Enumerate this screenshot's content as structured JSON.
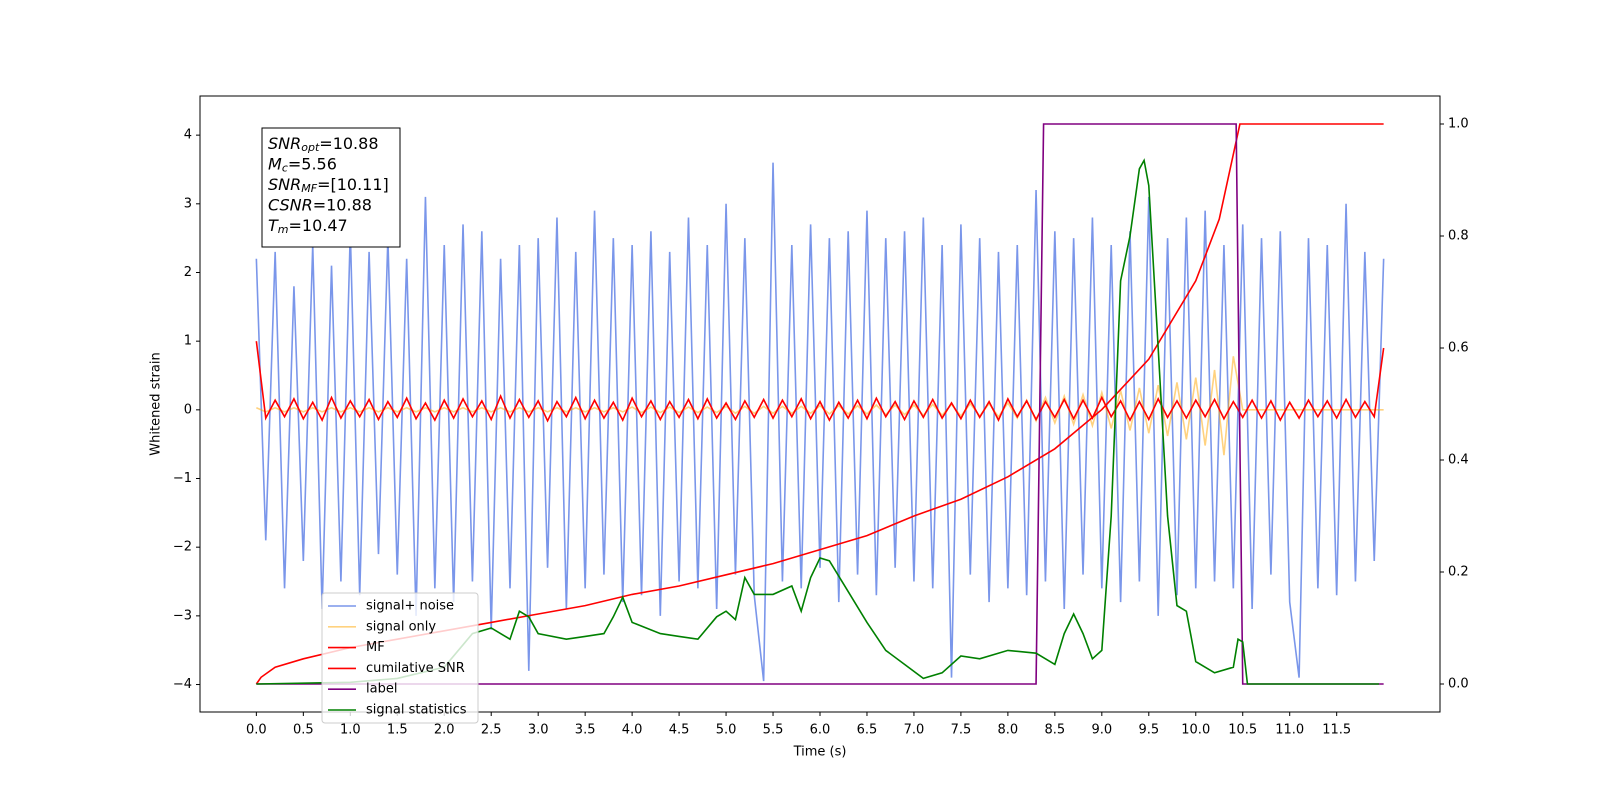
{
  "chart_data": {
    "type": "line",
    "x_label": "Time (s)",
    "y_label": "Whitened strain",
    "xlim": [
      -0.6,
      12.6
    ],
    "xticks": [
      {
        "value": 0,
        "label": "0.0"
      },
      0.5,
      {
        "value": 1,
        "label": "1.0"
      },
      1.5,
      {
        "value": 2,
        "label": "2.0"
      },
      2.5,
      {
        "value": 3,
        "label": "3.0"
      },
      3.5,
      {
        "value": 4,
        "label": "4.0"
      },
      4.5,
      {
        "value": 5,
        "label": "5.0"
      },
      5.5,
      {
        "value": 6,
        "label": "6.0"
      },
      6.5,
      {
        "value": 7,
        "label": "7.0"
      },
      7.5,
      {
        "value": 8,
        "label": "8.0"
      },
      8.5,
      {
        "value": 9,
        "label": "9.0"
      },
      9.5,
      {
        "value": 10,
        "label": "10.0"
      },
      10.5,
      {
        "value": 11,
        "label": "11.0"
      },
      11.5
    ],
    "ylim": [
      -4.4,
      4.57
    ],
    "yticks": [
      {
        "value": -4,
        "label": "−4"
      },
      {
        "value": -3,
        "label": "−3"
      },
      {
        "value": -2,
        "label": "−2"
      },
      {
        "value": -1,
        "label": "−1"
      },
      0,
      1,
      2,
      3,
      4
    ],
    "y2lim": [
      -0.05,
      1.05
    ],
    "y2ticks": [
      {
        "value": 0,
        "label": "0.0"
      },
      0.2,
      0.4,
      0.6,
      0.8,
      {
        "value": 1,
        "label": "1.0"
      }
    ],
    "legend": "lower left",
    "annotations": [
      {
        "symbol": "SNR",
        "subscript": "opt",
        "text": "=10.88"
      },
      {
        "symbol": "M",
        "subscript": "c",
        "text": "=5.56"
      },
      {
        "symbol": "SNR",
        "subscript": "MF",
        "text": "=[10.11]"
      },
      {
        "symbol": "CSNR",
        "text": "=10.88"
      },
      {
        "symbol": "T",
        "subscript": "m",
        "text": "=10.47"
      }
    ],
    "x": [
      0,
      0.1,
      0.2,
      0.3,
      0.4,
      0.5,
      0.6,
      0.7,
      0.8,
      0.9,
      1,
      1.1,
      1.2,
      1.3,
      1.4,
      1.5,
      1.6,
      1.7,
      1.8,
      1.9,
      2,
      2.1,
      2.2,
      2.3,
      2.4,
      2.5,
      2.6,
      2.7,
      2.8,
      2.9,
      3,
      3.1,
      3.2,
      3.3,
      3.4,
      3.5,
      3.6,
      3.7,
      3.8,
      3.9,
      4,
      4.1,
      4.2,
      4.3,
      4.4,
      4.5,
      4.6,
      4.7,
      4.8,
      4.9,
      5,
      5.1,
      5.2,
      5.3,
      5.4,
      5.5,
      5.6,
      5.7,
      5.8,
      5.9,
      6,
      6.1,
      6.2,
      6.3,
      6.4,
      6.5,
      6.6,
      6.7,
      6.8,
      6.9,
      7,
      7.1,
      7.2,
      7.3,
      7.4,
      7.5,
      7.6,
      7.7,
      7.8,
      7.9,
      8,
      8.1,
      8.2,
      8.3,
      8.4,
      8.5,
      8.6,
      8.7,
      8.8,
      8.9,
      9,
      9.1,
      9.2,
      9.3,
      9.4,
      9.5,
      9.6,
      9.7,
      9.8,
      9.9,
      10,
      10.1,
      10.2,
      10.3,
      10.4,
      10.5,
      10.6,
      10.7,
      10.8,
      10.9,
      11,
      11.1,
      11.2,
      11.3,
      11.4,
      11.5,
      11.6,
      11.7,
      11.8,
      11.9,
      12
    ],
    "series": [
      {
        "name": "signal+ noise",
        "color": "royalblue",
        "alpha": 0.7,
        "values": [
          2.2,
          -1.9,
          2.3,
          -2.6,
          1.8,
          -2.2,
          2.4,
          -2.9,
          2.1,
          -2.5,
          2.6,
          -2.7,
          2.3,
          -2.1,
          2.5,
          -2.4,
          2.2,
          -3.0,
          3.1,
          -2.6,
          2.4,
          -2.8,
          2.7,
          -2.5,
          2.6,
          -3.2,
          2.2,
          -2.6,
          2.4,
          -3.8,
          2.5,
          -2.3,
          2.8,
          -2.9,
          2.3,
          -2.6,
          2.9,
          -2.4,
          2.5,
          -2.8,
          2.4,
          -2.7,
          2.6,
          -3.0,
          2.3,
          -2.5,
          2.8,
          -2.6,
          2.4,
          -2.9,
          3.0,
          -2.4,
          2.5,
          -2.7,
          -3.95,
          3.6,
          -2.5,
          2.4,
          -2.6,
          2.7,
          -2.3,
          2.5,
          -2.8,
          2.6,
          -2.4,
          2.9,
          -2.7,
          2.5,
          -2.3,
          2.6,
          -2.5,
          2.8,
          -2.6,
          2.4,
          -3.9,
          2.7,
          -2.4,
          2.5,
          -2.8,
          2.3,
          -2.6,
          2.4,
          -2.7,
          3.2,
          -2.5,
          2.6,
          -2.9,
          2.5,
          -2.4,
          2.8,
          -2.6,
          2.4,
          -2.8,
          2.6,
          -2.5,
          3.1,
          -3.0,
          2.5,
          -2.7,
          2.8,
          -2.6,
          2.9,
          -2.5,
          2.4,
          -2.6,
          2.7,
          -2.9,
          2.5,
          -2.4,
          2.6,
          -2.8,
          -3.9,
          2.5,
          -2.6,
          2.4,
          -2.7,
          3.0,
          -2.5,
          2.3,
          -2.2,
          2.2
        ]
      },
      {
        "name": "signal only",
        "color": "orange",
        "alpha": 0.5,
        "values": [
          0.03,
          -0.03,
          0.03,
          -0.03,
          0.03,
          -0.03,
          0.03,
          -0.03,
          0.03,
          -0.03,
          0.03,
          -0.03,
          0.03,
          -0.03,
          0.03,
          -0.03,
          0.03,
          -0.03,
          0.03,
          -0.03,
          0.03,
          -0.03,
          0.03,
          -0.03,
          0.03,
          -0.03,
          0.03,
          -0.03,
          0.03,
          -0.03,
          0.03,
          -0.03,
          0.03,
          -0.03,
          0.03,
          -0.03,
          0.03,
          -0.03,
          0.03,
          -0.03,
          0.04,
          -0.04,
          0.04,
          -0.04,
          0.04,
          -0.04,
          0.04,
          -0.04,
          0.04,
          -0.04,
          0.05,
          -0.05,
          0.05,
          -0.05,
          0.05,
          -0.05,
          0.05,
          -0.05,
          0.05,
          -0.05,
          0.06,
          -0.06,
          0.06,
          -0.06,
          0.06,
          -0.06,
          0.07,
          -0.07,
          0.07,
          -0.07,
          0.07,
          -0.08,
          0.08,
          -0.08,
          0.08,
          -0.09,
          0.09,
          -0.09,
          0.09,
          -0.1,
          0.1,
          -0.12,
          0.14,
          -0.16,
          0.18,
          -0.19,
          0.2,
          -0.21,
          0.22,
          -0.23,
          0.25,
          -0.27,
          0.28,
          -0.3,
          0.32,
          -0.34,
          0.36,
          -0.38,
          0.4,
          -0.43,
          0.47,
          -0.52,
          0.58,
          -0.66,
          0.78,
          0,
          0,
          0,
          0,
          0,
          0,
          0,
          0,
          0,
          0,
          0,
          0,
          0,
          0,
          0,
          0
        ]
      },
      {
        "name": "MF",
        "color": "red",
        "values": [
          1.0,
          -0.12,
          0.14,
          -0.1,
          0.16,
          -0.13,
          0.11,
          -0.15,
          0.18,
          -0.12,
          0.13,
          -0.1,
          0.15,
          -0.14,
          0.12,
          -0.11,
          0.17,
          -0.13,
          0.1,
          -0.15,
          0.14,
          -0.12,
          0.16,
          -0.1,
          0.13,
          -0.14,
          0.2,
          -0.12,
          0.15,
          -0.11,
          0.13,
          -0.16,
          0.12,
          -0.1,
          0.18,
          -0.13,
          0.14,
          -0.12,
          0.11,
          -0.15,
          0.17,
          -0.1,
          0.13,
          -0.14,
          0.12,
          -0.11,
          0.15,
          -0.13,
          0.16,
          -0.12,
          0.1,
          -0.14,
          0.13,
          -0.11,
          0.15,
          -0.12,
          0.14,
          -0.1,
          0.16,
          -0.13,
          0.12,
          -0.15,
          0.11,
          -0.12,
          0.14,
          -0.13,
          0.17,
          -0.1,
          0.12,
          -0.14,
          0.13,
          -0.11,
          0.15,
          -0.12,
          0.1,
          -0.13,
          0.14,
          -0.11,
          0.12,
          -0.15,
          0.16,
          -0.1,
          0.13,
          -0.14,
          0.12,
          -0.11,
          0.15,
          -0.13,
          0.14,
          -0.12,
          0.18,
          -0.1,
          0.13,
          -0.15,
          0.12,
          -0.14,
          0.16,
          -0.11,
          0.13,
          -0.12,
          0.14,
          -0.1,
          0.15,
          -0.13,
          0.12,
          -0.11,
          0.14,
          -0.12,
          0.13,
          -0.15,
          0.11,
          -0.12,
          0.14,
          -0.1,
          0.13,
          -0.12,
          0.15,
          -0.11,
          0.12,
          -0.1,
          0.9
        ]
      },
      {
        "name": "cumilative SNR",
        "color": "red",
        "axis": "y2",
        "x": [
          0,
          0.05,
          0.2,
          0.5,
          1,
          1.5,
          2,
          2.5,
          3,
          3.5,
          4,
          4.5,
          5,
          5.5,
          6,
          6.5,
          7,
          7.5,
          8,
          8.5,
          9,
          9.5,
          10,
          10.25,
          10.47,
          12
        ],
        "values": [
          0,
          0.012,
          0.03,
          0.045,
          0.065,
          0.08,
          0.095,
          0.11,
          0.125,
          0.14,
          0.16,
          0.175,
          0.195,
          0.215,
          0.24,
          0.265,
          0.3,
          0.33,
          0.37,
          0.42,
          0.49,
          0.58,
          0.72,
          0.83,
          1.0,
          1.0
        ]
      },
      {
        "name": "label",
        "color": "purple",
        "axis": "y2",
        "x": [
          0,
          8.3,
          8.38,
          10.43,
          10.5,
          12
        ],
        "values": [
          0,
          0,
          1,
          1,
          0,
          0
        ]
      },
      {
        "name": "signal statistics",
        "color": "green",
        "axis": "y2",
        "x": [
          0,
          1,
          1.5,
          2,
          2.2,
          2.3,
          2.5,
          2.7,
          2.8,
          2.9,
          3,
          3.3,
          3.5,
          3.7,
          3.8,
          3.9,
          4,
          4.3,
          4.5,
          4.7,
          4.9,
          5,
          5.1,
          5.2,
          5.3,
          5.5,
          5.7,
          5.8,
          5.9,
          6,
          6.1,
          6.3,
          6.5,
          6.7,
          6.9,
          7.1,
          7.3,
          7.5,
          7.7,
          8,
          8.3,
          8.5,
          8.6,
          8.7,
          8.8,
          8.9,
          9,
          9.1,
          9.2,
          9.3,
          9.4,
          9.45,
          9.5,
          9.6,
          9.7,
          9.8,
          9.9,
          10,
          10.2,
          10.4,
          10.45,
          10.5,
          10.55,
          11,
          11.95
        ],
        "values": [
          0,
          0.003,
          0.01,
          0.03,
          0.07,
          0.09,
          0.1,
          0.08,
          0.13,
          0.12,
          0.09,
          0.08,
          0.085,
          0.09,
          0.12,
          0.155,
          0.11,
          0.09,
          0.085,
          0.08,
          0.12,
          0.13,
          0.115,
          0.19,
          0.16,
          0.16,
          0.175,
          0.13,
          0.19,
          0.225,
          0.22,
          0.165,
          0.11,
          0.06,
          0.035,
          0.01,
          0.02,
          0.05,
          0.045,
          0.06,
          0.055,
          0.035,
          0.09,
          0.125,
          0.09,
          0.045,
          0.06,
          0.3,
          0.72,
          0.8,
          0.92,
          0.935,
          0.89,
          0.6,
          0.3,
          0.14,
          0.13,
          0.04,
          0.02,
          0.03,
          0.08,
          0.075,
          0,
          0,
          0
        ]
      }
    ]
  }
}
